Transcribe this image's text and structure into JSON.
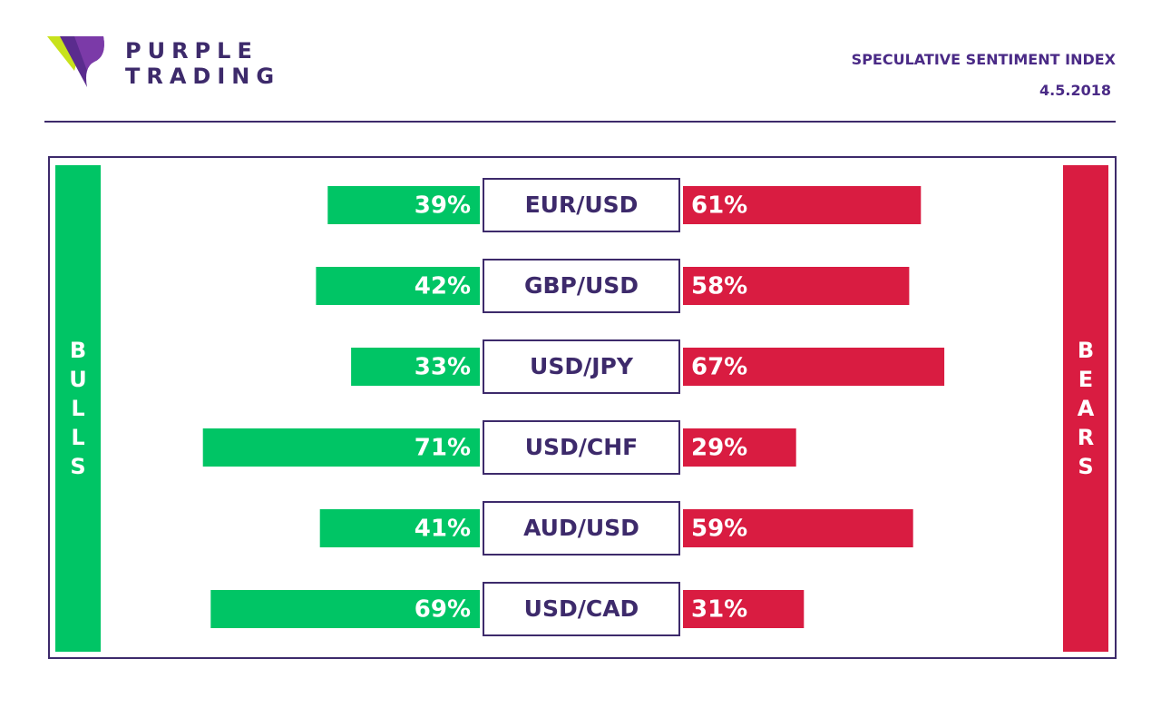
{
  "brand": {
    "line1": "PURPLE",
    "line2": "TRADING",
    "colors": {
      "purple": "#4a2a86",
      "dark_purple": "#3d2a6b",
      "lime": "#c8e21c"
    }
  },
  "header": {
    "title": "SPECULATIVE SENTIMENT INDEX",
    "date": "4.5.2018"
  },
  "legend": {
    "bulls_label": "BULLS",
    "bears_label": "BEARS",
    "bulls_color": "#00c565",
    "bears_color": "#d91c41"
  },
  "chart_data": {
    "type": "bar",
    "categories": [
      "EUR/USD",
      "GBP/USD",
      "USD/JPY",
      "USD/CHF",
      "AUD/USD",
      "USD/CAD"
    ],
    "series": [
      {
        "name": "BULLS",
        "values": [
          39,
          42,
          33,
          71,
          41,
          69
        ],
        "labels": [
          "39%",
          "42%",
          "33%",
          "71%",
          "41%",
          "69%"
        ],
        "color": "#00c565"
      },
      {
        "name": "BEARS",
        "values": [
          61,
          58,
          67,
          29,
          59,
          31
        ],
        "labels": [
          "61%",
          "58%",
          "67%",
          "29%",
          "59%",
          "31%"
        ],
        "color": "#d91c41"
      }
    ],
    "xlabel": "",
    "ylabel": "",
    "ylim": [
      0,
      100
    ]
  }
}
